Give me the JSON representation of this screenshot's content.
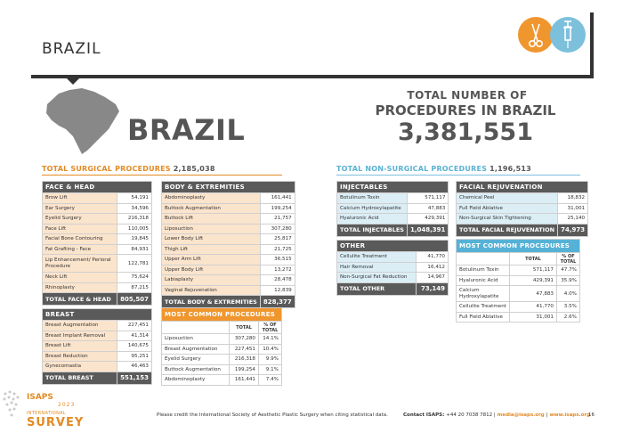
{
  "header": {
    "country": "BRAZIL"
  },
  "icons": {
    "left": "scissors-icon",
    "right": "syringe-icon"
  },
  "hero": {
    "country_big": "BRAZIL",
    "total_line1": "TOTAL NUMBER OF",
    "total_line2": "PROCEDURES IN BRAZIL",
    "total_value": "3,381,551"
  },
  "surgical": {
    "label": "TOTAL SURGICAL PROCEDURES",
    "value": "2,185,038"
  },
  "nonsurgical": {
    "label": "TOTAL NON-SURGICAL PROCEDURES",
    "value": "1,196,513"
  },
  "face_head": {
    "title": "FACE & HEAD",
    "rows": [
      {
        "name": "Brow Lift",
        "value": "54,191"
      },
      {
        "name": "Ear Surgery",
        "value": "34,596"
      },
      {
        "name": "Eyelid Surgery",
        "value": "216,318"
      },
      {
        "name": "Face Lift",
        "value": "110,005"
      },
      {
        "name": "Facial Bone Contouring",
        "value": "19,845"
      },
      {
        "name": "Fat Grafting - Face",
        "value": "84,931"
      },
      {
        "name": "Lip Enhancement/ Perioral Procedure",
        "value": "122,781"
      },
      {
        "name": "Neck Lift",
        "value": "75,624"
      },
      {
        "name": "Rhinoplasty",
        "value": "87,215"
      }
    ],
    "total_label": "TOTAL FACE & HEAD",
    "total_value": "805,507"
  },
  "body_ext": {
    "title": "BODY & EXTREMITIES",
    "rows": [
      {
        "name": "Abdominoplasty",
        "value": "161,441"
      },
      {
        "name": "Buttock Augmentation",
        "value": "199,254"
      },
      {
        "name": "Buttock Lift",
        "value": "21,757"
      },
      {
        "name": "Liposuction",
        "value": "307,280"
      },
      {
        "name": "Lower Body Lift",
        "value": "25,817"
      },
      {
        "name": "Thigh Lift",
        "value": "21,725"
      },
      {
        "name": "Upper Arm Lift",
        "value": "36,515"
      },
      {
        "name": "Upper Body Lift",
        "value": "13,272"
      },
      {
        "name": "Labiaplasty",
        "value": "28,478"
      },
      {
        "name": "Vaginal Rejuvenation",
        "value": "12,839"
      }
    ],
    "total_label": "TOTAL BODY & EXTREMITIES",
    "total_value": "828,377"
  },
  "breast": {
    "title": "BREAST",
    "rows": [
      {
        "name": "Breast Augmentation",
        "value": "227,451"
      },
      {
        "name": "Breast Implant Removal",
        "value": "41,314"
      },
      {
        "name": "Breast Lift",
        "value": "140,675"
      },
      {
        "name": "Breast Reduction",
        "value": "95,251"
      },
      {
        "name": "Gynecomastia",
        "value": "46,463"
      }
    ],
    "total_label": "TOTAL BREAST",
    "total_value": "551,153"
  },
  "mc_surgical": {
    "title": "MOST COMMON PROCEDURES",
    "col_total": "TOTAL",
    "col_pct": "% OF TOTAL",
    "rows": [
      {
        "name": "Liposuction",
        "total": "307,280",
        "pct": "14.1%"
      },
      {
        "name": "Breast Augmentation",
        "total": "227,451",
        "pct": "10.4%"
      },
      {
        "name": "Eyelid Surgery",
        "total": "216,318",
        "pct": "9.9%"
      },
      {
        "name": "Buttock Augmentation",
        "total": "199,254",
        "pct": "9.1%"
      },
      {
        "name": "Abdominoplasty",
        "total": "161,441",
        "pct": "7.4%"
      }
    ]
  },
  "injectables": {
    "title": "INJECTABLES",
    "rows": [
      {
        "name": "Botulinum Toxin",
        "value": "571,117"
      },
      {
        "name": "Calcium Hydroxylapatite",
        "value": "47,883"
      },
      {
        "name": "Hyaluronic Acid",
        "value": "429,391"
      }
    ],
    "total_label": "TOTAL INJECTABLES",
    "total_value": "1,048,391"
  },
  "facial_rej": {
    "title": "FACIAL REJUVENATION",
    "rows": [
      {
        "name": "Chemical Peel",
        "value": "18,832"
      },
      {
        "name": "Full Field Ablative",
        "value": "31,001"
      },
      {
        "name": "Non-Surgical Skin Tightening",
        "value": "25,140"
      }
    ],
    "total_label": "TOTAL FACIAL REJUVENATION",
    "total_value": "74,973"
  },
  "other": {
    "title": "OTHER",
    "rows": [
      {
        "name": "Cellulite Treatment",
        "value": "41,770"
      },
      {
        "name": "Hair Removal",
        "value": "16,412"
      },
      {
        "name": "Non-Surgical Fat Reduction",
        "value": "14,967"
      }
    ],
    "total_label": "TOTAL OTHER",
    "total_value": "73,149"
  },
  "mc_nonsurgical": {
    "title": "MOST COMMON PROCEDURES",
    "col_total": "TOTAL",
    "col_pct": "% OF TOTAL",
    "rows": [
      {
        "name": "Botulinum Toxin",
        "total": "571,117",
        "pct": "47.7%"
      },
      {
        "name": "Hyaluronic Acid",
        "total": "429,391",
        "pct": "35.9%"
      },
      {
        "name": "Calcium Hydroxylapatite",
        "total": "47,883",
        "pct": "4.0%"
      },
      {
        "name": "Cellulite Treatment",
        "total": "41,770",
        "pct": "3.5%"
      },
      {
        "name": "Full Field Ablative",
        "total": "31,001",
        "pct": "2.6%"
      }
    ]
  },
  "footer": {
    "credit": "Please credit the International Society of Aesthetic Plastic Surgery when citing statistical data.",
    "contact_label": "Contact ISAPS:",
    "phone": "+44 20 7038 7812 |",
    "email": "media@isaps.org",
    "sep": "|",
    "site": "www.isaps.org",
    "page": "16"
  },
  "logo": {
    "name": "ISAPS",
    "year": "2023",
    "line": "INTERNATIONAL",
    "survey": "SURVEY"
  },
  "colors": {
    "orange": "#f0962e",
    "blue": "#55b2d6",
    "dark": "#5a5a5a"
  }
}
